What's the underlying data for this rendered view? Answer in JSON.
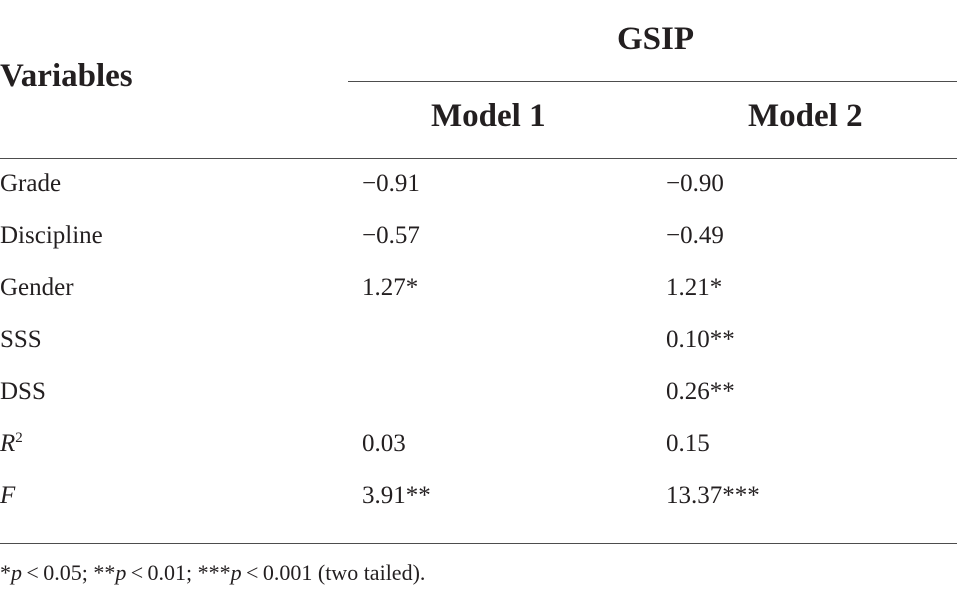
{
  "header": {
    "variables_label": "Variables",
    "group_label": "GSIP",
    "model1_label": "Model 1",
    "model2_label": "Model 2"
  },
  "rows": [
    {
      "label": "Grade",
      "model1": "−0.91",
      "model2": "−0.90"
    },
    {
      "label": "Discipline",
      "model1": "−0.57",
      "model2": "−0.49"
    },
    {
      "label": "Gender",
      "model1": "1.27*",
      "model2": "1.21*"
    },
    {
      "label": "SSS",
      "model1": "",
      "model2": "0.10**"
    },
    {
      "label": "DSS",
      "model1": "",
      "model2": "0.26**"
    },
    {
      "label_italic": "R",
      "label_sup": "2",
      "model1": "0.03",
      "model2": "0.15"
    },
    {
      "label_italic": "F",
      "model1": "3.91**",
      "model2": "13.37***"
    }
  ],
  "footnote": {
    "s1": "*",
    "p1": "p",
    "t1": " < 0.05; **",
    "p2": "p",
    "t2": " < 0.01; ***",
    "p3": "p",
    "t3": " < 0.001 (two tailed)."
  }
}
